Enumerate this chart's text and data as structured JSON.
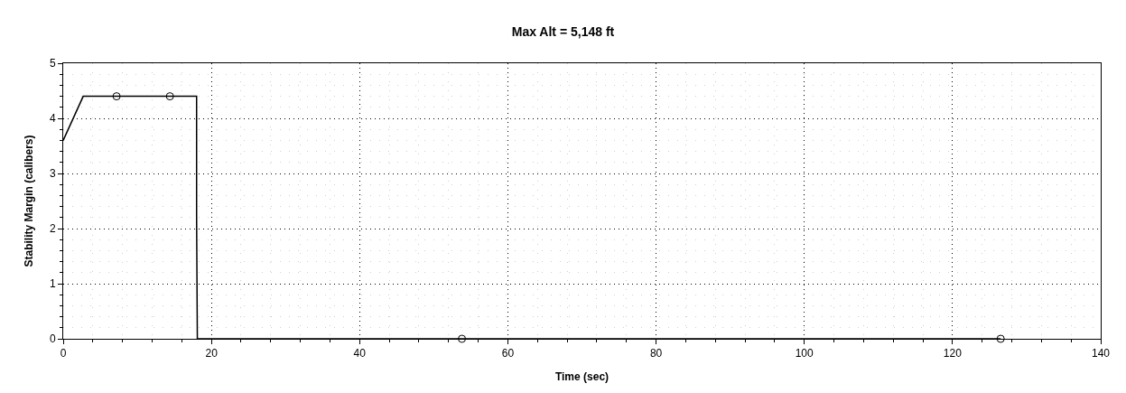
{
  "chart_data": {
    "type": "line",
    "title": "Max Alt = 5,148 ft",
    "xlabel": "Time (sec)",
    "ylabel": "Stability Margin (calibers)",
    "series": [
      {
        "color": "#000000",
        "x": [
          0,
          2.7,
          18.0,
          18.0,
          18.1,
          126.5
        ],
        "values": [
          3.6,
          4.4,
          4.4,
          2.2,
          0,
          0
        ]
      },
      {
        "type": "scatter",
        "color": "#000000",
        "marker": "circle",
        "x": [
          7.2,
          14.4,
          53.8,
          126.5
        ],
        "values": [
          4.4,
          4.4,
          0,
          0
        ]
      }
    ],
    "xlim": [
      0,
      140
    ],
    "xticks": [
      0,
      20,
      40,
      60,
      80,
      100,
      120,
      140
    ],
    "ylim": [
      0,
      5
    ],
    "yticks": [
      0,
      1,
      2,
      3,
      4,
      5
    ],
    "grid": true,
    "line_style": "solid"
  }
}
